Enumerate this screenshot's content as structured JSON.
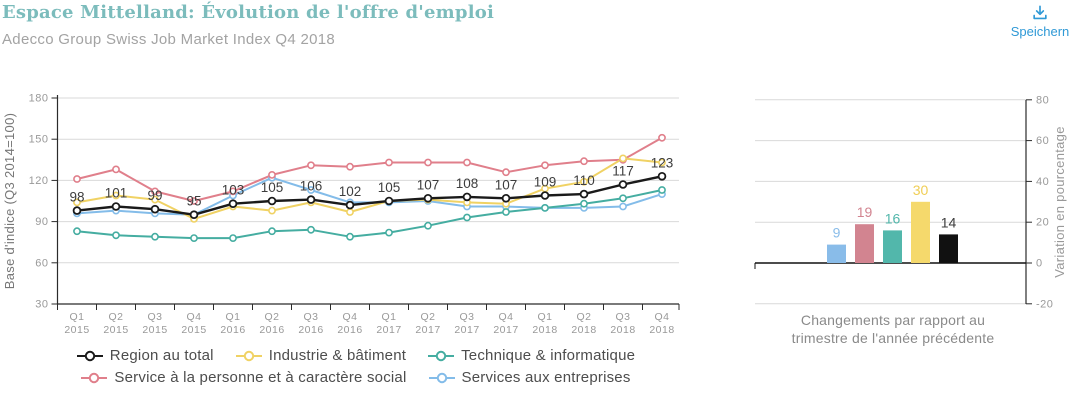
{
  "header": {
    "title": "Espace Mittelland: Évolution de l'offre d'emploi",
    "subtitle": "Adecco Group Swiss Job Market Index Q4 2018",
    "save_label": "Speichern",
    "title_color": "#7cbcbc",
    "link_color": "#2f99d6"
  },
  "chart_data": [
    {
      "type": "line",
      "ylabel": "Base d'indice (Q3 2014=100)",
      "ylim": [
        30,
        180
      ],
      "yticks": [
        30,
        60,
        90,
        120,
        150,
        180
      ],
      "grid": true,
      "legend_position": "bottom",
      "categories": [
        {
          "quarter": "Q1",
          "year": "2015"
        },
        {
          "quarter": "Q2",
          "year": "2015"
        },
        {
          "quarter": "Q3",
          "year": "2015"
        },
        {
          "quarter": "Q4",
          "year": "2015"
        },
        {
          "quarter": "Q1",
          "year": "2016"
        },
        {
          "quarter": "Q2",
          "year": "2016"
        },
        {
          "quarter": "Q3",
          "year": "2016"
        },
        {
          "quarter": "Q4",
          "year": "2016"
        },
        {
          "quarter": "Q1",
          "year": "2017"
        },
        {
          "quarter": "Q2",
          "year": "2017"
        },
        {
          "quarter": "Q3",
          "year": "2017"
        },
        {
          "quarter": "Q4",
          "year": "2017"
        },
        {
          "quarter": "Q1",
          "year": "2018"
        },
        {
          "quarter": "Q2",
          "year": "2018"
        },
        {
          "quarter": "Q3",
          "year": "2018"
        },
        {
          "quarter": "Q4",
          "year": "2018"
        }
      ],
      "series": [
        {
          "name": "Region au total",
          "color": "#1a1a1a",
          "values": [
            98,
            101,
            99,
            95,
            103,
            105,
            106,
            102,
            105,
            107,
            108,
            107,
            109,
            110,
            117,
            123
          ],
          "point_labels": true
        },
        {
          "name": "Industrie & bâtiment",
          "color": "#f0d264",
          "values": [
            104,
            109,
            106,
            92,
            101,
            98,
            104,
            97,
            105,
            106,
            104,
            103,
            114,
            119,
            136,
            133
          ],
          "point_labels": false
        },
        {
          "name": "Technique & informatique",
          "color": "#45ada1",
          "values": [
            83,
            80,
            79,
            78,
            78,
            83,
            84,
            79,
            82,
            87,
            93,
            97,
            100,
            103,
            107,
            113
          ],
          "point_labels": false
        },
        {
          "name": "Service à la personne et à caractère social",
          "color": "#e07f8b",
          "values": [
            121,
            128,
            112,
            105,
            112,
            124,
            131,
            130,
            133,
            133,
            133,
            126,
            131,
            134,
            135,
            151
          ],
          "point_labels": false
        },
        {
          "name": "Services aux entreprises",
          "color": "#83bce9",
          "values": [
            96,
            98,
            96,
            95,
            109,
            122,
            113,
            104,
            104,
            105,
            101,
            101,
            100,
            100,
            101,
            110
          ],
          "point_labels": false
        }
      ]
    },
    {
      "type": "bar",
      "ylabel": "Variation en pourcentage",
      "ylim": [
        -20,
        80
      ],
      "yticks": [
        80,
        60,
        40,
        20,
        0,
        -20
      ],
      "grid": true,
      "caption_lines": [
        "Changements par rapport au",
        "trimestre de l'année précédente"
      ],
      "bars": [
        {
          "label": "9",
          "value": 9,
          "color": "#89bce9",
          "label_color": "#89bce9"
        },
        {
          "label": "19",
          "value": 19,
          "color": "#d28490",
          "label_color": "#d28490"
        },
        {
          "label": "16",
          "value": 16,
          "color": "#52b7ab",
          "label_color": "#52b7ab"
        },
        {
          "label": "30",
          "value": 30,
          "color": "#f5d96c",
          "label_color": "#f0ce55"
        },
        {
          "label": "14",
          "value": 14,
          "color": "#111111",
          "label_color": "#3d3d3d"
        }
      ]
    }
  ]
}
